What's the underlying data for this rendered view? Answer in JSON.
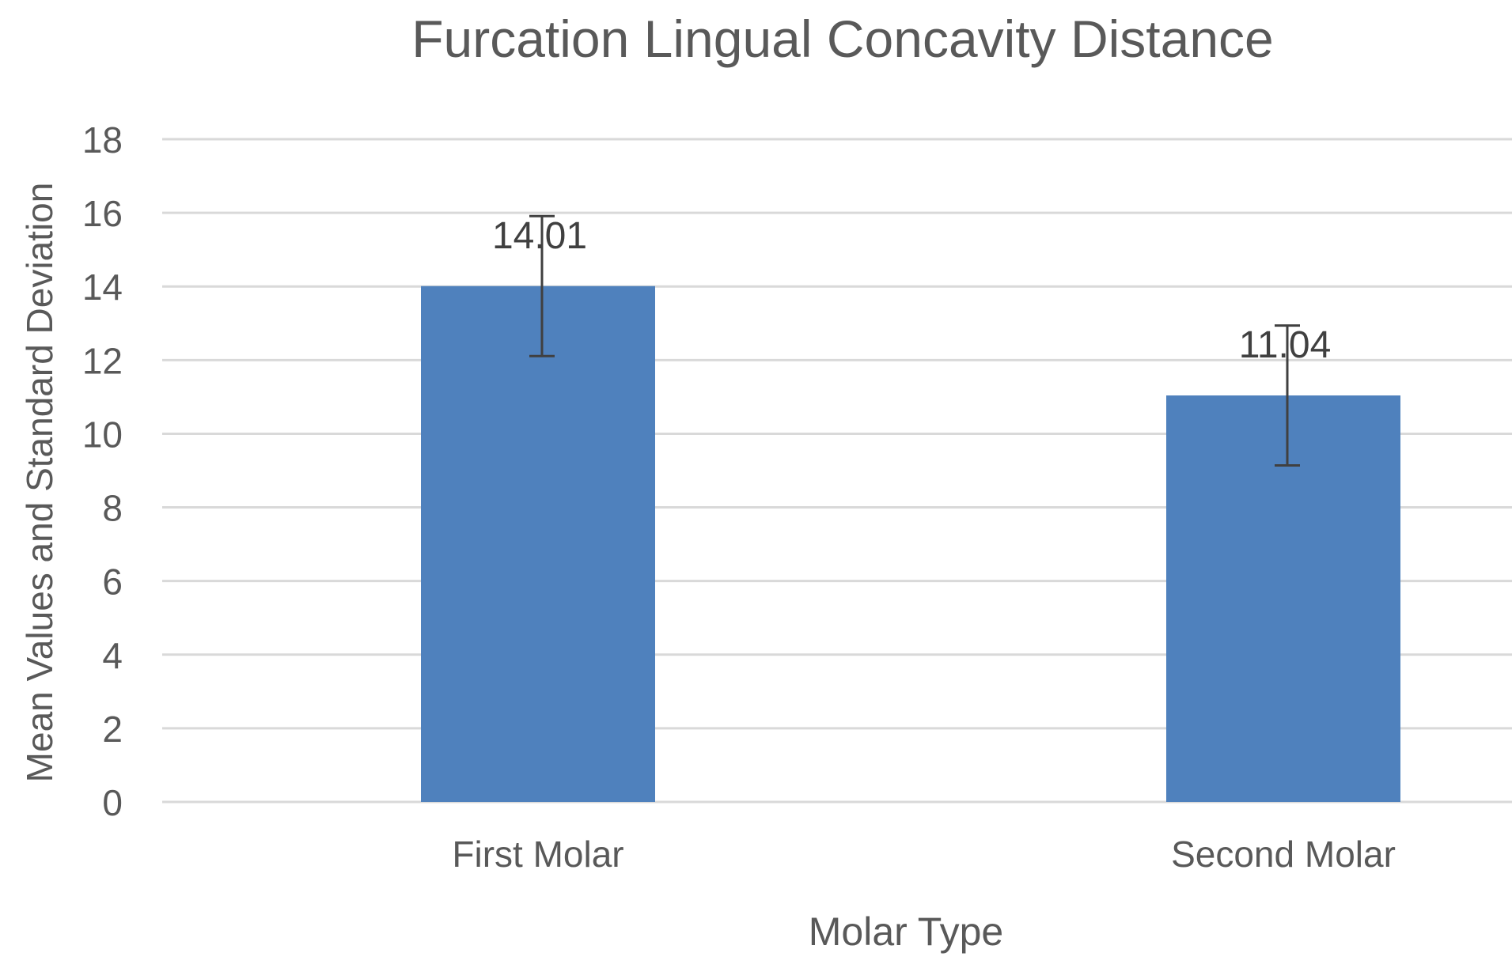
{
  "chart_data": {
    "type": "bar",
    "title": "Furcation Lingual Concavity Distance",
    "xlabel": "Molar Type",
    "ylabel": "Mean Values and Standard Deviation",
    "categories": [
      "First Molar",
      "Second Molar"
    ],
    "values": [
      14.01,
      11.04
    ],
    "data_labels": [
      "14.01",
      "11.04"
    ],
    "error_bars": [
      1.9,
      1.9
    ],
    "ylim": [
      0,
      18
    ],
    "yticks": [
      0,
      2,
      4,
      6,
      8,
      10,
      12,
      14,
      16,
      18
    ],
    "grid": true,
    "legend": "none",
    "bar_color": "#4f81bd",
    "gridline_color": "#d9d9d9",
    "text_color": "#595959",
    "error_bar_color": "#404040"
  }
}
